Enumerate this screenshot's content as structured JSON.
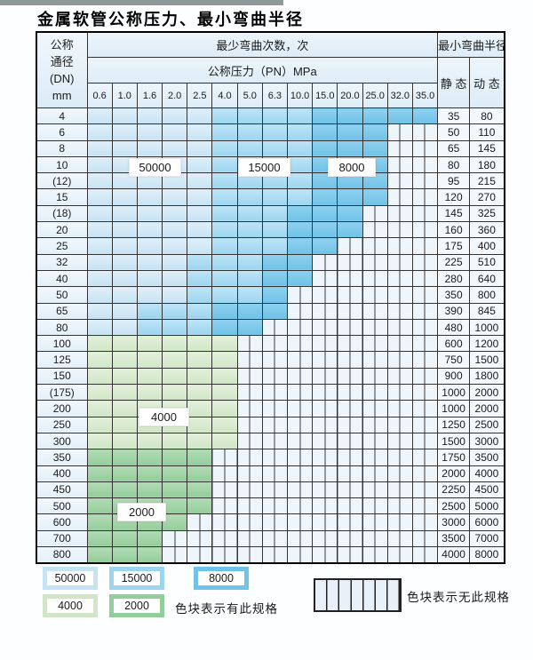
{
  "page": {
    "title": "金属软管公称压力、最小弯曲半径"
  },
  "table": {
    "corner": {
      "line1": "公称",
      "line2": "通径",
      "line3": "(DN)",
      "line4": "mm"
    },
    "top_header": "最少弯曲次数，次",
    "pressure_header": "公称压力（PN）MPa",
    "pressure_ticks": [
      "0.6",
      "1.0",
      "1.6",
      "2.0",
      "2.5",
      "4.0",
      "5.0",
      "6.3",
      "10.0",
      "15.0",
      "20.0",
      "25.0",
      "32.0",
      "35.0"
    ],
    "minrad_header": "最小弯曲半径",
    "static_header": "静 态",
    "dynamic_header": "动 态",
    "rows": [
      {
        "dn": "4",
        "cells": [
          "L",
          "L",
          "L",
          "L",
          "L",
          "M",
          "M",
          "M",
          "M",
          "D",
          "D",
          "D",
          "D",
          "D"
        ],
        "static": "35",
        "dynamic": "80"
      },
      {
        "dn": "6",
        "cells": [
          "L",
          "L",
          "L",
          "L",
          "L",
          "M",
          "M",
          "M",
          "M",
          "D",
          "D",
          "D",
          "N",
          "N"
        ],
        "static": "50",
        "dynamic": "110"
      },
      {
        "dn": "8",
        "cells": [
          "L",
          "L",
          "L",
          "L",
          "L",
          "M",
          "M",
          "M",
          "M",
          "D",
          "D",
          "D",
          "N",
          "N"
        ],
        "static": "65",
        "dynamic": "145"
      },
      {
        "dn": "10",
        "cells": [
          "L",
          "L",
          "L",
          "L",
          "L",
          "M",
          "M",
          "M",
          "M",
          "D",
          "D",
          "D",
          "N",
          "N"
        ],
        "static": "80",
        "dynamic": "180"
      },
      {
        "dn": "(12)",
        "cells": [
          "L",
          "L",
          "L",
          "L",
          "L",
          "M",
          "M",
          "M",
          "M",
          "D",
          "D",
          "D",
          "N",
          "N"
        ],
        "static": "95",
        "dynamic": "215"
      },
      {
        "dn": "15",
        "cells": [
          "L",
          "L",
          "L",
          "L",
          "L",
          "M",
          "M",
          "M",
          "M",
          "D",
          "D",
          "D",
          "N",
          "N"
        ],
        "static": "120",
        "dynamic": "270"
      },
      {
        "dn": "(18)",
        "cells": [
          "L",
          "L",
          "L",
          "L",
          "L",
          "M",
          "M",
          "M",
          "D",
          "D",
          "D",
          "N",
          "N",
          "N"
        ],
        "static": "145",
        "dynamic": "325"
      },
      {
        "dn": "20",
        "cells": [
          "L",
          "L",
          "L",
          "L",
          "L",
          "M",
          "M",
          "M",
          "D",
          "D",
          "D",
          "N",
          "N",
          "N"
        ],
        "static": "160",
        "dynamic": "360"
      },
      {
        "dn": "25",
        "cells": [
          "L",
          "L",
          "L",
          "L",
          "L",
          "M",
          "M",
          "M",
          "D",
          "D",
          "N",
          "N",
          "N",
          "N"
        ],
        "static": "175",
        "dynamic": "400"
      },
      {
        "dn": "32",
        "cells": [
          "L",
          "L",
          "L",
          "L",
          "M",
          "M",
          "M",
          "D",
          "D",
          "N",
          "N",
          "N",
          "N",
          "N"
        ],
        "static": "225",
        "dynamic": "510"
      },
      {
        "dn": "40",
        "cells": [
          "L",
          "L",
          "L",
          "L",
          "M",
          "M",
          "M",
          "D",
          "D",
          "N",
          "N",
          "N",
          "N",
          "N"
        ],
        "static": "280",
        "dynamic": "640"
      },
      {
        "dn": "50",
        "cells": [
          "L",
          "L",
          "L",
          "L",
          "M",
          "M",
          "M",
          "D",
          "N",
          "N",
          "N",
          "N",
          "N",
          "N"
        ],
        "static": "350",
        "dynamic": "800"
      },
      {
        "dn": "65",
        "cells": [
          "L",
          "L",
          "M",
          "M",
          "M",
          "D",
          "D",
          "D",
          "N",
          "N",
          "N",
          "N",
          "N",
          "N"
        ],
        "static": "390",
        "dynamic": "845"
      },
      {
        "dn": "80",
        "cells": [
          "L",
          "L",
          "M",
          "M",
          "M",
          "D",
          "D",
          "N",
          "N",
          "N",
          "N",
          "N",
          "N",
          "N"
        ],
        "static": "480",
        "dynamic": "1000"
      },
      {
        "dn": "100",
        "cells": [
          "G4",
          "G4",
          "G4",
          "G4",
          "G4",
          "G4",
          "N",
          "N",
          "N",
          "N",
          "N",
          "N",
          "N",
          "N"
        ],
        "static": "600",
        "dynamic": "1200"
      },
      {
        "dn": "125",
        "cells": [
          "G4",
          "G4",
          "G4",
          "G4",
          "G4",
          "G4",
          "N",
          "N",
          "N",
          "N",
          "N",
          "N",
          "N",
          "N"
        ],
        "static": "750",
        "dynamic": "1500"
      },
      {
        "dn": "150",
        "cells": [
          "G4",
          "G4",
          "G4",
          "G4",
          "G4",
          "G4",
          "N",
          "N",
          "N",
          "N",
          "N",
          "N",
          "N",
          "N"
        ],
        "static": "900",
        "dynamic": "1800"
      },
      {
        "dn": "(175)",
        "cells": [
          "G4",
          "G4",
          "G4",
          "G4",
          "G4",
          "G4",
          "N",
          "N",
          "N",
          "N",
          "N",
          "N",
          "N",
          "N"
        ],
        "static": "1000",
        "dynamic": "2000"
      },
      {
        "dn": "200",
        "cells": [
          "G4",
          "G4",
          "G4",
          "G4",
          "G4",
          "G4",
          "N",
          "N",
          "N",
          "N",
          "N",
          "N",
          "N",
          "N"
        ],
        "static": "1000",
        "dynamic": "2000"
      },
      {
        "dn": "250",
        "cells": [
          "G4",
          "G4",
          "G4",
          "G4",
          "G4",
          "G4",
          "N",
          "N",
          "N",
          "N",
          "N",
          "N",
          "N",
          "N"
        ],
        "static": "1250",
        "dynamic": "2500"
      },
      {
        "dn": "300",
        "cells": [
          "G4",
          "G4",
          "G4",
          "G4",
          "G4",
          "G4",
          "N",
          "N",
          "N",
          "N",
          "N",
          "N",
          "N",
          "N"
        ],
        "static": "1500",
        "dynamic": "3000"
      },
      {
        "dn": "350",
        "cells": [
          "G2",
          "G2",
          "G2",
          "G2",
          "G2",
          "N",
          "N",
          "N",
          "N",
          "N",
          "N",
          "N",
          "N",
          "N"
        ],
        "static": "1750",
        "dynamic": "3500"
      },
      {
        "dn": "400",
        "cells": [
          "G2",
          "G2",
          "G2",
          "G2",
          "G2",
          "N",
          "N",
          "N",
          "N",
          "N",
          "N",
          "N",
          "N",
          "N"
        ],
        "static": "2000",
        "dynamic": "4000"
      },
      {
        "dn": "450",
        "cells": [
          "G2",
          "G2",
          "G2",
          "G2",
          "G2",
          "N",
          "N",
          "N",
          "N",
          "N",
          "N",
          "N",
          "N",
          "N"
        ],
        "static": "2250",
        "dynamic": "4500"
      },
      {
        "dn": "500",
        "cells": [
          "G2",
          "G2",
          "G2",
          "G2",
          "G2",
          "N",
          "N",
          "N",
          "N",
          "N",
          "N",
          "N",
          "N",
          "N"
        ],
        "static": "2500",
        "dynamic": "5000"
      },
      {
        "dn": "600",
        "cells": [
          "G2",
          "G2",
          "G2",
          "G2",
          "N",
          "N",
          "N",
          "N",
          "N",
          "N",
          "N",
          "N",
          "N",
          "N"
        ],
        "static": "3000",
        "dynamic": "6000"
      },
      {
        "dn": "700",
        "cells": [
          "G2",
          "G2",
          "G2",
          "N",
          "N",
          "N",
          "N",
          "N",
          "N",
          "N",
          "N",
          "N",
          "N",
          "N"
        ],
        "static": "3500",
        "dynamic": "7000"
      },
      {
        "dn": "800",
        "cells": [
          "G2",
          "G2",
          "G2",
          "N",
          "N",
          "N",
          "N",
          "N",
          "N",
          "N",
          "N",
          "N",
          "N",
          "N"
        ],
        "static": "4000",
        "dynamic": "8000"
      }
    ]
  },
  "float_labels": {
    "l50000": "50000",
    "l15000": "15000",
    "l8000": "8000",
    "l4000": "4000",
    "l2000": "2000"
  },
  "legend": {
    "blocks": [
      {
        "id": "b50000",
        "label": "50000",
        "cat": "L"
      },
      {
        "id": "b15000",
        "label": "15000",
        "cat": "M"
      },
      {
        "id": "b8000",
        "label": "8000",
        "cat": "D"
      },
      {
        "id": "b4000",
        "label": "4000",
        "cat": "G4"
      },
      {
        "id": "b2000",
        "label": "2000",
        "cat": "G2"
      }
    ],
    "has_spec_note": "色块表示有此规格",
    "no_spec_note": "色块表示无此规格"
  },
  "colors": {
    "cycles_50000": "#c6e3f4",
    "cycles_15000": "#9dd5f0",
    "cycles_8000": "#6fc2e8",
    "cycles_4000": "#d0e6c6",
    "cycles_2000": "#93cd99",
    "no_spec_hatch_bg": "#eef5fb",
    "grid_line": "#333333"
  }
}
